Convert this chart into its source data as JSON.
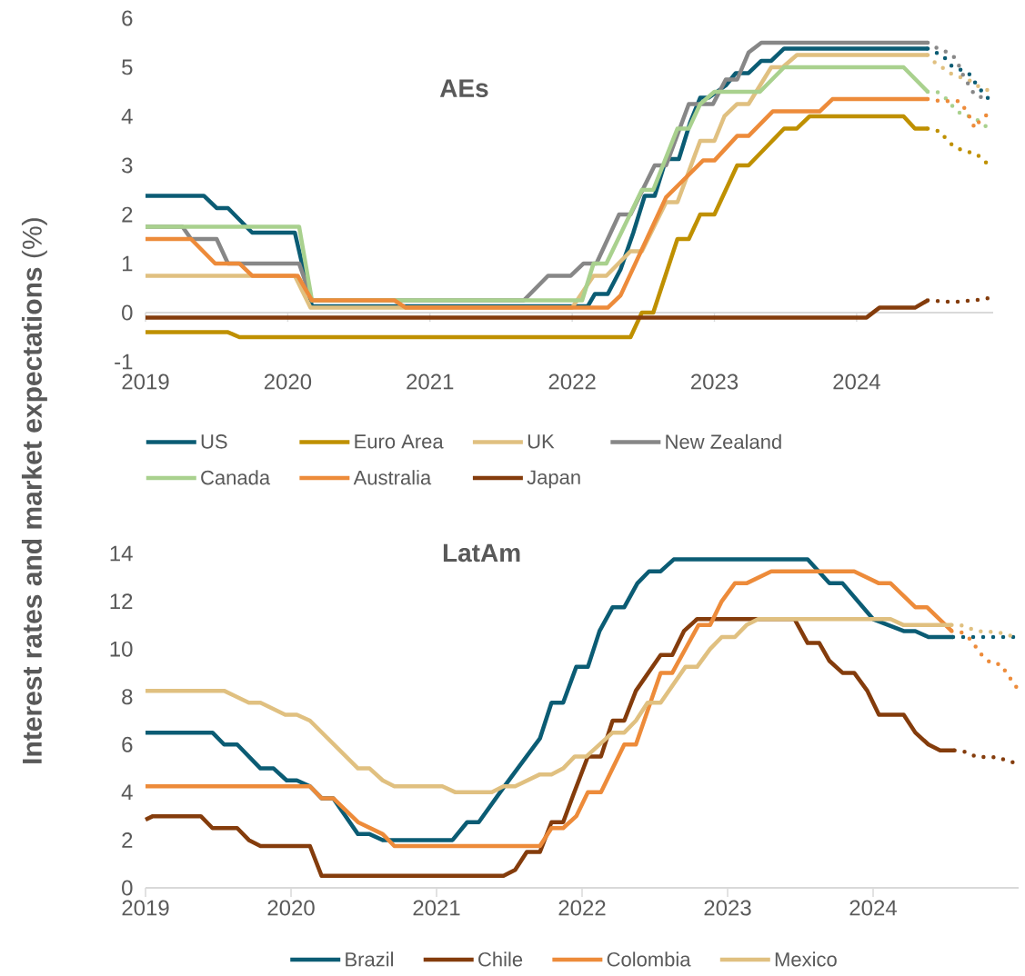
{
  "chart_data": [
    {
      "type": "line",
      "title": "AEs",
      "ylabel": "**Interest rates and market expectations** (%)",
      "xlim": [
        2019,
        2024.96
      ],
      "xticks": [
        2019,
        2020,
        2021,
        2022,
        2023,
        2024
      ],
      "ylim": [
        -1,
        6
      ],
      "yticks": [
        -1,
        0,
        1,
        2,
        3,
        4,
        5,
        6
      ],
      "legend": "bottom",
      "series": [
        {
          "name": "US",
          "color": "#0b5c74",
          "line_style": "solid",
          "x": [
            2019,
            2019.41,
            2019.5,
            2019.58,
            2019.75,
            2020.05,
            2020.17,
            2022.11,
            2022.16,
            2022.25,
            2022.34,
            2022.43,
            2022.51,
            2022.58,
            2022.66,
            2022.75,
            2022.83,
            2022.9,
            2022.96,
            2023.08,
            2023.15,
            2023.24,
            2023.33,
            2023.4,
            2023.49,
            2024.5
          ],
          "values": [
            2.38,
            2.38,
            2.13,
            2.13,
            1.63,
            1.63,
            0.13,
            0.13,
            0.38,
            0.38,
            0.88,
            1.63,
            2.38,
            2.38,
            3.13,
            3.13,
            3.88,
            4.38,
            4.38,
            4.63,
            4.88,
            4.88,
            5.13,
            5.13,
            5.38,
            5.38
          ]
        },
        {
          "name": "Euro Area",
          "color": "#bf9000",
          "line_style": "solid",
          "x": [
            2019,
            2019.58,
            2019.66,
            2022.41,
            2022.49,
            2022.57,
            2022.74,
            2022.82,
            2022.9,
            2023.0,
            2023.16,
            2023.24,
            2023.49,
            2023.58,
            2023.67,
            2024.33,
            2024.41,
            2024.5
          ],
          "values": [
            -0.4,
            -0.4,
            -0.5,
            -0.5,
            0,
            0,
            1.5,
            1.5,
            2,
            2,
            3,
            3,
            3.75,
            3.75,
            4,
            4,
            3.75,
            3.75
          ]
        },
        {
          "name": "UK",
          "color": "#e0c080",
          "line_style": "solid",
          "x": [
            2019,
            2020.05,
            2020.16,
            2022.0,
            2022.15,
            2022.24,
            2022.41,
            2022.49,
            2022.66,
            2022.74,
            2022.9,
            2023.0,
            2023.07,
            2023.16,
            2023.24,
            2023.4,
            2023.48,
            2023.58,
            2024.5
          ],
          "values": [
            0.75,
            0.75,
            0.1,
            0.1,
            0.75,
            0.75,
            1.25,
            1.25,
            2.25,
            2.25,
            3.5,
            3.5,
            4,
            4.25,
            4.25,
            5,
            5,
            5.25,
            5.25
          ]
        },
        {
          "name": "New Zealand",
          "color": "#878787",
          "line_style": "solid",
          "x": [
            2019,
            2019.26,
            2019.32,
            2019.5,
            2019.58,
            2020.08,
            2020.17,
            2021.66,
            2021.83,
            2021.99,
            2022.08,
            2022.17,
            2022.33,
            2022.41,
            2022.58,
            2022.66,
            2022.82,
            2022.99,
            2023.08,
            2023.16,
            2023.24,
            2023.33,
            2024.5
          ],
          "values": [
            1.75,
            1.75,
            1.5,
            1.5,
            1,
            1,
            0.25,
            0.25,
            0.75,
            0.75,
            1,
            1,
            2,
            2,
            3,
            3,
            4.25,
            4.25,
            4.75,
            4.75,
            5.3,
            5.5,
            5.5
          ]
        },
        {
          "name": "Canada",
          "color": "#a9d18e",
          "line_style": "solid",
          "x": [
            2019,
            2020.08,
            2020.17,
            2022.07,
            2022.15,
            2022.24,
            2022.49,
            2022.57,
            2022.74,
            2022.82,
            2022.9,
            2023.0,
            2023.32,
            2023.49,
            2024.33,
            2024.5
          ],
          "values": [
            1.75,
            1.75,
            0.25,
            0.25,
            1,
            1,
            2.5,
            2.5,
            3.75,
            3.75,
            4.25,
            4.5,
            4.5,
            5,
            5,
            4.5
          ]
        },
        {
          "name": "Australia",
          "color": "#ed8b3a",
          "line_style": "solid",
          "x": [
            2019,
            2019.32,
            2019.49,
            2019.66,
            2019.75,
            2020.07,
            2020.17,
            2020.75,
            2020.83,
            2022.25,
            2022.34,
            2022.66,
            2022.92,
            2023.0,
            2023.16,
            2023.24,
            2023.41,
            2023.74,
            2023.83,
            2024.5
          ],
          "values": [
            1.5,
            1.5,
            1,
            1,
            0.75,
            0.75,
            0.25,
            0.25,
            0.1,
            0.1,
            0.35,
            2.35,
            3.1,
            3.1,
            3.6,
            3.6,
            4.1,
            4.1,
            4.35,
            4.35
          ]
        },
        {
          "name": "Japan",
          "color": "#843c0c",
          "line_style": "solid",
          "x": [
            2019,
            2024.07,
            2024.16,
            2024.41,
            2024.5
          ],
          "values": [
            -0.1,
            -0.1,
            0.1,
            0.1,
            0.25
          ]
        },
        {
          "color": "#0b5c74",
          "line_style": "dotted",
          "x": [
            2024.5,
            2024.61,
            2024.66,
            2024.79,
            2024.83,
            2024.88,
            2024.93
          ],
          "values": [
            5.38,
            5.23,
            5.04,
            4.87,
            4.7,
            4.51,
            4.35
          ]
        },
        {
          "color": "#bf9000",
          "line_style": "dotted",
          "x": [
            2024.5,
            2024.59,
            2024.64,
            2024.7,
            2024.76,
            2024.84,
            2024.9,
            2024.95
          ],
          "values": [
            3.75,
            3.69,
            3.49,
            3.36,
            3.29,
            3.24,
            3.09,
            2.92
          ]
        },
        {
          "color": "#e0c080",
          "line_style": "dotted",
          "x": [
            2024.5,
            2024.54,
            2024.61,
            2024.67,
            2024.81,
            2024.87,
            2024.94
          ],
          "values": [
            5.25,
            5.12,
            4.98,
            4.86,
            4.71,
            4.58,
            4.52
          ]
        },
        {
          "color": "#878787",
          "line_style": "dotted",
          "x": [
            2024.5,
            2024.56,
            2024.62,
            2024.68,
            2024.72,
            2024.75,
            2024.79,
            2024.83,
            2024.93
          ],
          "values": [
            5.5,
            5.4,
            5.33,
            5.23,
            5.03,
            4.83,
            4.63,
            4.43,
            4.35
          ]
        },
        {
          "color": "#a9d18e",
          "line_style": "dotted",
          "x": [
            2024.5,
            2024.57,
            2024.63,
            2024.68,
            2024.74,
            2024.81,
            2024.87,
            2024.93
          ],
          "values": [
            4.5,
            4.49,
            4.36,
            4.19,
            4.03,
            3.99,
            3.89,
            3.74
          ]
        },
        {
          "color": "#ed8b3a",
          "line_style": "dotted",
          "x": [
            2024.5,
            2024.56,
            2024.64,
            2024.72,
            2024.76,
            2024.8,
            2024.83,
            2024.87,
            2024.93
          ],
          "values": [
            4.35,
            4.32,
            4.31,
            4.31,
            4.16,
            3.96,
            3.76,
            3.93,
            4.06
          ]
        },
        {
          "color": "#843c0c",
          "line_style": "dotted",
          "x": [
            2024.5,
            2024.55,
            2024.63,
            2024.7,
            2024.78,
            2024.86,
            2024.94
          ],
          "values": [
            0.25,
            0.24,
            0.22,
            0.22,
            0.24,
            0.26,
            0.3
          ]
        }
      ]
    },
    {
      "type": "line",
      "title": "LatAm",
      "xlim": [
        2019,
        2025
      ],
      "xticks": [
        2019,
        2020,
        2021,
        2022,
        2023,
        2024
      ],
      "ylim": [
        0,
        14
      ],
      "yticks": [
        0,
        2,
        4,
        6,
        8,
        10,
        12,
        14
      ],
      "legend": "bottom",
      "series": [
        {
          "name": "Brazil",
          "color": "#0b5c74",
          "line_style": "solid",
          "x": [
            2019,
            2019.46,
            2019.54,
            2019.63,
            2019.79,
            2019.88,
            2019.97,
            2020.04,
            2020.13,
            2020.21,
            2020.29,
            2020.46,
            2020.54,
            2020.63,
            2021.11,
            2021.21,
            2021.29,
            2021.46,
            2021.71,
            2021.79,
            2021.87,
            2021.96,
            2022.04,
            2022.12,
            2022.21,
            2022.29,
            2022.38,
            2022.46,
            2022.54,
            2022.63,
            2023.55,
            2023.7,
            2023.79,
            2024.0,
            2024.21,
            2024.29,
            2024.38,
            2024.55
          ],
          "values": [
            6.5,
            6.5,
            6,
            6,
            5,
            5,
            4.5,
            4.5,
            4.25,
            3.75,
            3.75,
            2.25,
            2.25,
            2,
            2,
            2.75,
            2.75,
            4.2,
            6.25,
            7.75,
            7.75,
            9.25,
            9.25,
            10.75,
            11.75,
            11.75,
            12.75,
            13.25,
            13.25,
            13.75,
            13.75,
            12.75,
            12.75,
            11.25,
            10.75,
            10.75,
            10.5,
            10.5
          ]
        },
        {
          "name": "Chile",
          "color": "#843c0c",
          "line_style": "solid",
          "x": [
            2019,
            2019.05,
            2019.38,
            2019.46,
            2019.63,
            2019.71,
            2019.79,
            2020.13,
            2020.21,
            2021.46,
            2021.54,
            2021.62,
            2021.71,
            2021.79,
            2021.87,
            2021.94,
            2022.04,
            2022.13,
            2022.21,
            2022.29,
            2022.37,
            2022.54,
            2022.62,
            2022.7,
            2022.79,
            2023.46,
            2023.55,
            2023.63,
            2023.7,
            2023.79,
            2023.87,
            2023.96,
            2024.04,
            2024.21,
            2024.29,
            2024.38,
            2024.46,
            2024.56
          ],
          "values": [
            2.85,
            3,
            3,
            2.5,
            2.5,
            2,
            1.75,
            1.75,
            0.5,
            0.5,
            0.75,
            1.5,
            1.5,
            2.75,
            2.75,
            3.9,
            5.5,
            5.5,
            7,
            7,
            8.25,
            9.75,
            9.75,
            10.75,
            11.25,
            11.25,
            10.25,
            10.25,
            9.5,
            9,
            9,
            8.25,
            7.25,
            7.25,
            6.5,
            6,
            5.75,
            5.75
          ]
        },
        {
          "name": "Colombia",
          "color": "#ed8b3a",
          "line_style": "solid",
          "x": [
            2019,
            2020.13,
            2020.21,
            2020.29,
            2020.46,
            2020.63,
            2020.71,
            2021.71,
            2021.79,
            2021.87,
            2021.96,
            2022.04,
            2022.13,
            2022.29,
            2022.37,
            2022.54,
            2022.62,
            2022.8,
            2022.88,
            2022.96,
            2023.05,
            2023.13,
            2023.3,
            2023.87,
            2024.04,
            2024.12,
            2024.29,
            2024.37,
            2024.54
          ],
          "values": [
            4.25,
            4.25,
            3.75,
            3.75,
            2.75,
            2.25,
            1.75,
            1.75,
            2.5,
            2.5,
            3,
            4,
            4,
            6,
            6,
            9,
            9,
            11,
            11,
            12,
            12.75,
            12.75,
            13.25,
            13.25,
            12.75,
            12.75,
            11.75,
            11.75,
            10.75
          ]
        },
        {
          "name": "Mexico",
          "color": "#e0c080",
          "line_style": "solid",
          "x": [
            2019,
            2019.54,
            2019.71,
            2019.79,
            2019.96,
            2020.04,
            2020.13,
            2020.46,
            2020.54,
            2020.63,
            2020.71,
            2021.04,
            2021.13,
            2021.38,
            2021.46,
            2021.54,
            2021.71,
            2021.79,
            2021.87,
            2021.95,
            2022.03,
            2022.12,
            2022.21,
            2022.29,
            2022.37,
            2022.45,
            2022.54,
            2022.71,
            2022.79,
            2022.88,
            2022.96,
            2023.05,
            2023.13,
            2023.21,
            2024.12,
            2024.21,
            2024.54
          ],
          "values": [
            8.25,
            8.25,
            7.75,
            7.75,
            7.25,
            7.25,
            7,
            5,
            5,
            4.5,
            4.25,
            4.25,
            4,
            4,
            4.25,
            4.25,
            4.75,
            4.75,
            5,
            5.5,
            5.5,
            6,
            6.5,
            6.5,
            7,
            7.75,
            7.75,
            9.25,
            9.25,
            10,
            10.5,
            10.5,
            11,
            11.25,
            11.25,
            11,
            11
          ]
        },
        {
          "color": "#0b5c74",
          "line_style": "dotted",
          "x": [
            2024.55,
            2024.64,
            2024.72,
            2024.8,
            2024.88,
            2024.98
          ],
          "values": [
            10.5,
            10.5,
            10.5,
            10.5,
            10.5,
            10.5
          ]
        },
        {
          "color": "#843c0c",
          "line_style": "dotted",
          "x": [
            2024.56,
            2024.63,
            2024.71,
            2024.78,
            2024.86,
            2024.93,
            2025.0
          ],
          "values": [
            5.75,
            5.7,
            5.49,
            5.47,
            5.47,
            5.29,
            5.22
          ]
        },
        {
          "color": "#ed8b3a",
          "line_style": "dotted",
          "x": [
            2024.54,
            2024.61,
            2024.66,
            2024.71,
            2024.75,
            2024.81,
            2024.88,
            2024.92,
            2025.0
          ],
          "values": [
            10.75,
            10.69,
            10.45,
            10.06,
            9.72,
            9.41,
            9.35,
            8.96,
            8.27
          ]
        },
        {
          "color": "#e0c080",
          "line_style": "dotted",
          "x": [
            2024.54,
            2024.6,
            2024.68,
            2024.75,
            2024.82,
            2024.9,
            2024.98
          ],
          "values": [
            11,
            11,
            10.83,
            10.72,
            10.72,
            10.65,
            10.47
          ]
        }
      ]
    }
  ]
}
